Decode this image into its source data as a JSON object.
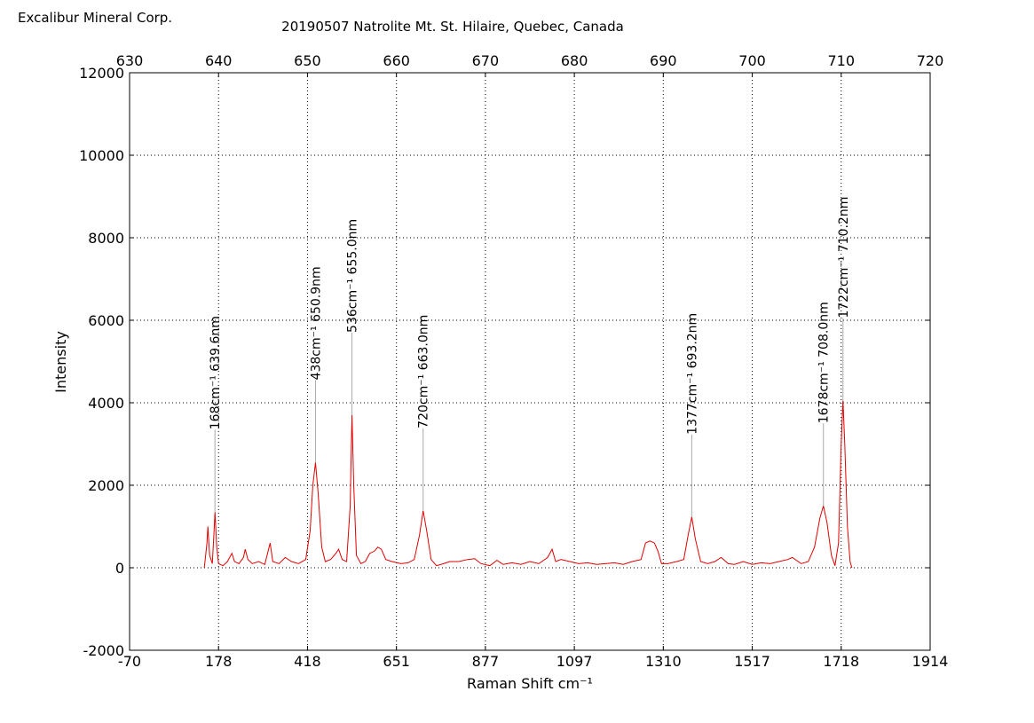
{
  "chart_data": {
    "type": "line",
    "corner_text": "Excalibur Mineral Corp.",
    "title": "20190507 Natrolite Mt. St. Hilaire, Quebec, Canada",
    "xlabel": "Raman Shift cm⁻¹",
    "ylabel": "Intensity",
    "color": "#e00000",
    "grid": true,
    "xlim": [
      630,
      720
    ],
    "xticks": [
      {
        "value": 630,
        "label": "-70"
      },
      {
        "value": 640,
        "label": "178"
      },
      {
        "value": 650,
        "label": "418"
      },
      {
        "value": 660,
        "label": "651"
      },
      {
        "value": 670,
        "label": "877"
      },
      {
        "value": 680,
        "label": "1097"
      },
      {
        "value": 690,
        "label": "1310"
      },
      {
        "value": 700,
        "label": "1517"
      },
      {
        "value": 710,
        "label": "1718"
      },
      {
        "value": 720,
        "label": "1914"
      }
    ],
    "x2ticks": [
      630,
      640,
      650,
      660,
      670,
      680,
      690,
      700,
      710,
      720
    ],
    "ylim": [
      -2000,
      12000
    ],
    "yticks": [
      -2000,
      0,
      2000,
      4000,
      6000,
      8000,
      10000,
      12000
    ],
    "x": [
      638.4,
      638.7,
      638.8,
      639.0,
      639.3,
      639.5,
      639.6,
      639.8,
      640.0,
      640.5,
      641.0,
      641.5,
      641.8,
      642.3,
      642.8,
      643.0,
      643.3,
      643.8,
      644.5,
      645.2,
      645.8,
      646.1,
      646.8,
      647.5,
      648.2,
      649.0,
      649.8,
      650.3,
      650.6,
      650.9,
      651.2,
      651.6,
      652.0,
      652.6,
      653.2,
      653.5,
      653.9,
      654.4,
      654.8,
      655.0,
      655.2,
      655.5,
      656.0,
      656.5,
      657.0,
      657.5,
      657.9,
      658.3,
      658.8,
      659.5,
      660.5,
      661.3,
      662.0,
      662.6,
      663.0,
      663.4,
      663.9,
      664.5,
      665.3,
      666.0,
      667.0,
      668.0,
      668.8,
      669.5,
      670.5,
      671.3,
      672.0,
      673.0,
      674.0,
      675.0,
      676.0,
      677.0,
      677.5,
      677.9,
      678.5,
      679.5,
      680.5,
      681.5,
      682.5,
      683.5,
      684.5,
      685.5,
      686.5,
      687.5,
      688.0,
      688.5,
      689.0,
      689.4,
      689.8,
      690.5,
      691.5,
      692.3,
      692.8,
      693.2,
      693.6,
      694.2,
      695.0,
      695.8,
      696.5,
      697.3,
      698.0,
      699.0,
      700.0,
      701.0,
      702.0,
      703.0,
      704.0,
      704.5,
      705.5,
      706.3,
      707.0,
      707.6,
      708.0,
      708.4,
      708.9,
      709.3,
      709.7,
      710.0,
      710.2,
      710.4,
      710.7,
      711.0,
      711.2
    ],
    "values": [
      0,
      600,
      1000,
      300,
      100,
      900,
      1350,
      500,
      100,
      50,
      150,
      350,
      150,
      100,
      250,
      450,
      200,
      100,
      150,
      80,
      600,
      150,
      100,
      250,
      150,
      100,
      200,
      900,
      2000,
      2550,
      1800,
      500,
      150,
      200,
      350,
      450,
      200,
      150,
      1500,
      3700,
      2000,
      300,
      100,
      150,
      350,
      400,
      500,
      450,
      200,
      150,
      100,
      120,
      200,
      800,
      1380,
      900,
      200,
      50,
      100,
      150,
      150,
      200,
      220,
      100,
      50,
      180,
      80,
      120,
      80,
      150,
      100,
      250,
      450,
      150,
      200,
      150,
      100,
      120,
      80,
      100,
      120,
      80,
      150,
      200,
      600,
      650,
      600,
      400,
      100,
      100,
      150,
      200,
      800,
      1230,
      700,
      150,
      100,
      150,
      250,
      100,
      80,
      150,
      80,
      120,
      100,
      150,
      200,
      250,
      100,
      150,
      500,
      1200,
      1500,
      1100,
      300,
      50,
      600,
      3000,
      4050,
      3000,
      1000,
      150,
      0
    ],
    "annotations": [
      {
        "x": 639.6,
        "y": 1350,
        "label": "168cm⁻¹ 639.6nm"
      },
      {
        "x": 650.9,
        "y": 2550,
        "label": "438cm⁻¹ 650.9nm"
      },
      {
        "x": 655.0,
        "y": 3700,
        "label": "536cm⁻¹ 655.0nm"
      },
      {
        "x": 663.0,
        "y": 1380,
        "label": "720cm⁻¹ 663.0nm"
      },
      {
        "x": 693.2,
        "y": 1230,
        "label": "1377cm⁻¹ 693.2nm"
      },
      {
        "x": 708.0,
        "y": 1500,
        "label": "1678cm⁻¹ 708.0nm"
      },
      {
        "x": 710.2,
        "y": 4050,
        "label": "1722cm⁻¹ 710.2nm"
      }
    ]
  }
}
